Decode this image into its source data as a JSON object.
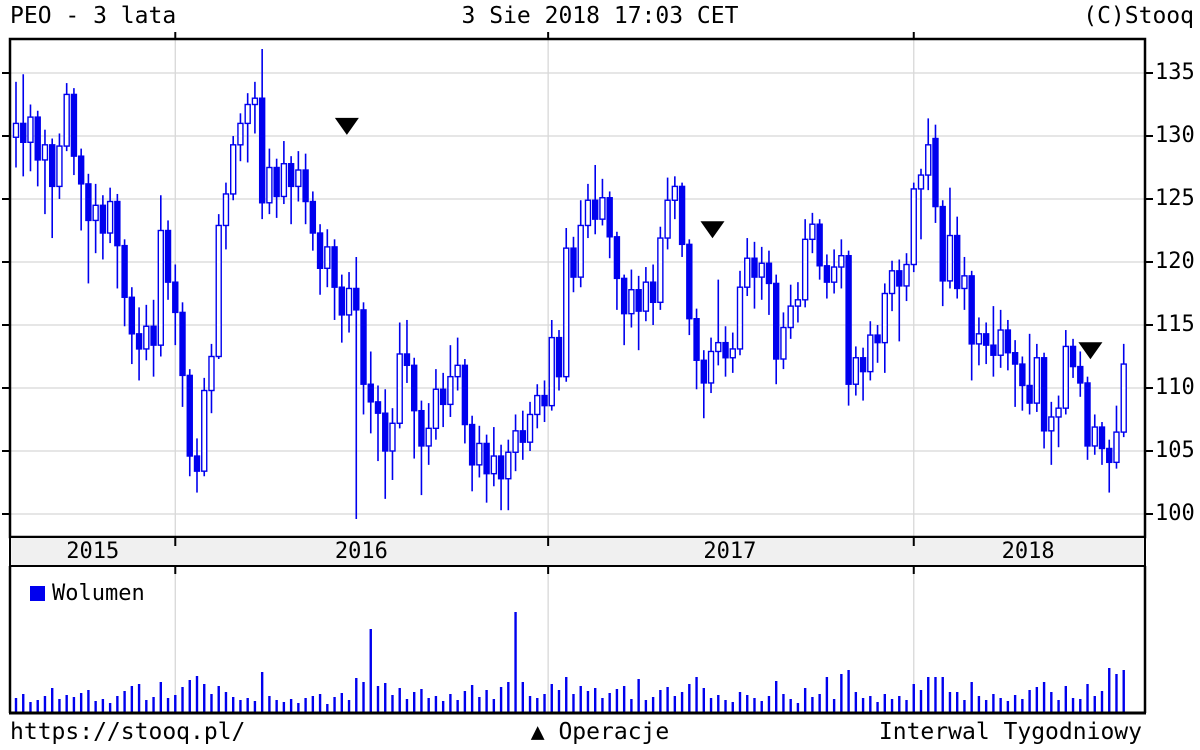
{
  "header": {
    "title": "PEO - 3 lata",
    "datetime": "3 Sie 2018 17:03 CET",
    "copyright": "(C)Stooq"
  },
  "footer": {
    "url": "https://stooq.pl/",
    "operations_glyph": "▲",
    "operations_label": " Operacje",
    "interval_label": "Interwal Tygodniowy"
  },
  "volume_legend": "Wolumen",
  "colors": {
    "candle": "#0000ee",
    "candle_fill_up": "#ffffff",
    "grid": "#d8d8d8",
    "band_fill": "#f0f0f0",
    "border": "#000000",
    "marker": "#000000"
  },
  "chart_data": {
    "type": "candlestick+volume",
    "title": "PEO - 3 lata",
    "interval": "weekly",
    "ticker": "PEO",
    "legend_volume": "Wolumen",
    "y_axis": {
      "ticks": [
        135,
        130,
        125,
        120,
        115,
        110,
        105,
        100
      ],
      "min": 98.5,
      "max": 137.7
    },
    "x_axis": {
      "year_labels": [
        "2015",
        "2016",
        "2017",
        "2018"
      ],
      "year_label_week_centers": [
        10.6,
        47.7,
        98.6,
        139.8
      ],
      "year_boundary_week_index": [
        22,
        73.5,
        124
      ]
    },
    "markers": {
      "glyph": "▼",
      "label": "Operacje",
      "week_price": [
        [
          45.7,
          130.8
        ],
        [
          96.2,
          122.6
        ],
        [
          148.4,
          113.0
        ]
      ]
    },
    "weeks_ohlcv": [
      [
        129.9,
        134.3,
        127.5,
        131.0,
        14
      ],
      [
        131.0,
        134.9,
        126.8,
        129.5,
        18
      ],
      [
        129.5,
        132.5,
        127.2,
        131.5,
        10
      ],
      [
        131.5,
        132.0,
        126.0,
        128.1,
        12
      ],
      [
        128.1,
        130.5,
        123.8,
        129.3,
        16
      ],
      [
        129.3,
        129.8,
        121.9,
        126.0,
        24
      ],
      [
        126.0,
        130.2,
        125.0,
        129.2,
        13
      ],
      [
        129.2,
        134.2,
        128.8,
        133.3,
        17
      ],
      [
        133.3,
        133.8,
        126.9,
        128.4,
        15
      ],
      [
        128.4,
        129.0,
        122.5,
        126.2,
        19
      ],
      [
        126.2,
        127.0,
        118.3,
        123.3,
        22
      ],
      [
        123.3,
        126.2,
        120.7,
        124.5,
        11
      ],
      [
        124.5,
        125.3,
        120.2,
        122.3,
        13
      ],
      [
        122.3,
        125.9,
        121.5,
        124.8,
        9
      ],
      [
        124.8,
        125.4,
        117.9,
        121.3,
        16
      ],
      [
        121.3,
        121.8,
        114.9,
        117.2,
        21
      ],
      [
        117.2,
        118.0,
        111.9,
        114.3,
        26
      ],
      [
        114.3,
        116.4,
        110.6,
        113.1,
        28
      ],
      [
        113.1,
        116.6,
        112.2,
        114.9,
        12
      ],
      [
        114.9,
        117.0,
        110.9,
        113.4,
        15
      ],
      [
        113.4,
        125.3,
        112.5,
        122.5,
        30
      ],
      [
        122.5,
        123.3,
        117.0,
        118.4,
        14
      ],
      [
        118.4,
        119.8,
        113.4,
        116.0,
        17
      ],
      [
        116.0,
        116.8,
        108.5,
        111.0,
        25
      ],
      [
        111.0,
        111.5,
        103.0,
        104.6,
        32
      ],
      [
        104.6,
        106.0,
        101.7,
        103.4,
        36
      ],
      [
        103.4,
        110.8,
        103.0,
        109.8,
        28
      ],
      [
        109.8,
        113.5,
        108.0,
        112.5,
        18
      ],
      [
        112.5,
        123.8,
        112.3,
        122.9,
        26
      ],
      [
        122.9,
        126.3,
        121.0,
        125.4,
        20
      ],
      [
        125.4,
        130.0,
        124.9,
        129.3,
        15
      ],
      [
        129.3,
        131.8,
        128.0,
        131.0,
        12
      ],
      [
        131.0,
        133.4,
        127.9,
        132.5,
        14
      ],
      [
        132.5,
        134.3,
        130.2,
        133.0,
        11
      ],
      [
        133.0,
        136.9,
        123.4,
        124.7,
        40
      ],
      [
        124.7,
        129.0,
        123.8,
        127.5,
        16
      ],
      [
        127.5,
        128.2,
        123.5,
        125.2,
        12
      ],
      [
        125.2,
        129.6,
        124.6,
        127.8,
        10
      ],
      [
        127.8,
        128.4,
        123.0,
        126.0,
        13
      ],
      [
        126.0,
        128.8,
        124.8,
        127.3,
        9
      ],
      [
        127.3,
        128.6,
        123.0,
        124.8,
        14
      ],
      [
        124.8,
        125.6,
        120.9,
        122.3,
        16
      ],
      [
        122.3,
        123.0,
        117.4,
        119.5,
        18
      ],
      [
        119.5,
        122.6,
        118.0,
        121.2,
        8
      ],
      [
        121.2,
        121.8,
        115.4,
        118.0,
        15
      ],
      [
        118.0,
        119.0,
        113.6,
        115.8,
        19
      ],
      [
        115.8,
        119.2,
        114.4,
        117.9,
        12
      ],
      [
        117.9,
        120.4,
        99.6,
        116.2,
        34
      ],
      [
        116.2,
        116.8,
        107.9,
        110.3,
        30
      ],
      [
        110.3,
        112.9,
        106.4,
        108.9,
        83
      ],
      [
        108.9,
        110.2,
        104.2,
        108.0,
        26
      ],
      [
        108.0,
        109.9,
        101.2,
        105.0,
        29
      ],
      [
        105.0,
        108.4,
        102.7,
        107.2,
        17
      ],
      [
        107.2,
        115.2,
        106.8,
        112.7,
        24
      ],
      [
        112.7,
        115.4,
        110.4,
        111.8,
        13
      ],
      [
        111.8,
        112.4,
        104.4,
        108.2,
        20
      ],
      [
        108.2,
        109.0,
        101.5,
        105.4,
        23
      ],
      [
        105.4,
        108.8,
        103.9,
        106.8,
        14
      ],
      [
        106.8,
        111.5,
        105.9,
        109.9,
        16
      ],
      [
        109.9,
        111.2,
        106.9,
        108.7,
        11
      ],
      [
        108.7,
        113.4,
        107.7,
        110.9,
        18
      ],
      [
        110.9,
        114.0,
        109.8,
        111.8,
        12
      ],
      [
        111.8,
        112.3,
        105.6,
        107.1,
        21
      ],
      [
        107.1,
        107.8,
        101.8,
        103.9,
        27
      ],
      [
        103.9,
        107.0,
        102.9,
        105.6,
        15
      ],
      [
        105.6,
        106.3,
        100.9,
        103.2,
        22
      ],
      [
        103.2,
        106.9,
        102.2,
        104.6,
        13
      ],
      [
        104.6,
        105.5,
        100.3,
        102.8,
        25
      ],
      [
        102.8,
        105.9,
        100.3,
        104.9,
        30
      ],
      [
        104.9,
        107.9,
        103.4,
        106.6,
        100
      ],
      [
        106.6,
        108.2,
        104.3,
        105.7,
        30
      ],
      [
        105.7,
        108.9,
        105.0,
        107.9,
        16
      ],
      [
        107.9,
        110.3,
        106.8,
        109.4,
        14
      ],
      [
        109.4,
        110.6,
        107.3,
        108.6,
        18
      ],
      [
        108.6,
        115.4,
        108.2,
        114.0,
        28
      ],
      [
        114.0,
        114.6,
        109.8,
        110.9,
        22
      ],
      [
        110.9,
        122.7,
        110.5,
        121.1,
        35
      ],
      [
        121.1,
        122.0,
        117.6,
        118.8,
        18
      ],
      [
        118.8,
        124.9,
        118.0,
        122.9,
        26
      ],
      [
        122.9,
        126.2,
        121.9,
        124.9,
        21
      ],
      [
        124.9,
        127.7,
        122.2,
        123.4,
        24
      ],
      [
        123.4,
        126.6,
        122.9,
        125.1,
        14
      ],
      [
        125.1,
        125.6,
        120.3,
        122.0,
        19
      ],
      [
        122.0,
        122.4,
        116.2,
        118.7,
        23
      ],
      [
        118.7,
        119.0,
        113.4,
        115.9,
        26
      ],
      [
        115.9,
        119.4,
        114.8,
        117.8,
        13
      ],
      [
        117.8,
        118.9,
        113.0,
        116.1,
        33
      ],
      [
        116.1,
        119.6,
        115.3,
        118.4,
        12
      ],
      [
        118.4,
        119.8,
        115.0,
        116.8,
        15
      ],
      [
        116.8,
        122.8,
        116.2,
        121.9,
        22
      ],
      [
        121.9,
        126.7,
        121.0,
        124.9,
        25
      ],
      [
        124.9,
        126.8,
        123.4,
        126.0,
        16
      ],
      [
        126.0,
        126.3,
        120.4,
        121.4,
        20
      ],
      [
        121.4,
        121.8,
        114.2,
        115.5,
        28
      ],
      [
        115.5,
        116.3,
        109.9,
        112.2,
        35
      ],
      [
        112.2,
        113.0,
        107.6,
        110.4,
        24
      ],
      [
        110.4,
        114.0,
        109.6,
        112.9,
        14
      ],
      [
        112.9,
        118.6,
        111.8,
        113.6,
        17
      ],
      [
        113.6,
        114.9,
        110.9,
        112.4,
        12
      ],
      [
        112.4,
        114.4,
        111.2,
        113.1,
        10
      ],
      [
        113.1,
        119.3,
        112.6,
        118.0,
        20
      ],
      [
        118.0,
        121.9,
        117.3,
        120.3,
        17
      ],
      [
        120.3,
        121.6,
        116.3,
        118.8,
        14
      ],
      [
        118.8,
        121.2,
        117.0,
        119.9,
        11
      ],
      [
        119.9,
        120.9,
        115.8,
        118.3,
        16
      ],
      [
        118.3,
        119.0,
        110.3,
        112.3,
        31
      ],
      [
        112.3,
        116.0,
        111.5,
        114.8,
        18
      ],
      [
        114.8,
        118.2,
        113.9,
        116.5,
        13
      ],
      [
        116.5,
        118.4,
        115.2,
        117.0,
        9
      ],
      [
        117.0,
        123.4,
        116.4,
        121.8,
        24
      ],
      [
        121.8,
        123.9,
        120.7,
        123.0,
        15
      ],
      [
        123.0,
        123.4,
        118.6,
        119.7,
        18
      ],
      [
        119.7,
        120.6,
        117.1,
        118.4,
        35
      ],
      [
        118.4,
        121.0,
        117.5,
        119.6,
        13
      ],
      [
        119.6,
        121.8,
        117.9,
        120.5,
        38
      ],
      [
        120.5,
        120.9,
        108.6,
        110.3,
        42
      ],
      [
        110.3,
        113.3,
        109.4,
        112.4,
        20
      ],
      [
        112.4,
        113.2,
        109.0,
        111.3,
        14
      ],
      [
        111.3,
        115.3,
        110.6,
        114.2,
        16
      ],
      [
        114.2,
        115.0,
        112.0,
        113.6,
        10
      ],
      [
        113.6,
        118.3,
        111.2,
        117.5,
        18
      ],
      [
        117.5,
        120.1,
        116.1,
        119.3,
        13
      ],
      [
        119.3,
        120.2,
        113.7,
        118.1,
        16
      ],
      [
        118.1,
        120.7,
        116.9,
        119.8,
        12
      ],
      [
        119.8,
        126.3,
        119.2,
        125.8,
        28
      ],
      [
        125.8,
        127.4,
        121.8,
        126.9,
        22
      ],
      [
        126.9,
        131.4,
        125.7,
        129.3,
        35
      ],
      [
        129.8,
        130.9,
        123.1,
        124.4,
        35
      ],
      [
        124.4,
        124.9,
        116.5,
        118.5,
        35
      ],
      [
        118.5,
        125.9,
        117.9,
        122.1,
        20
      ],
      [
        122.1,
        123.6,
        117.1,
        117.9,
        20
      ],
      [
        117.9,
        120.4,
        116.2,
        118.9,
        12
      ],
      [
        118.9,
        119.3,
        110.6,
        113.5,
        30
      ],
      [
        113.5,
        115.6,
        111.8,
        114.3,
        16
      ],
      [
        114.3,
        115.2,
        111.9,
        113.4,
        12
      ],
      [
        113.4,
        116.5,
        110.9,
        112.6,
        18
      ],
      [
        112.6,
        116.2,
        111.6,
        114.6,
        14
      ],
      [
        114.6,
        115.4,
        111.4,
        112.8,
        11
      ],
      [
        112.8,
        113.8,
        108.5,
        111.9,
        17
      ],
      [
        111.9,
        112.5,
        108.2,
        110.2,
        13
      ],
      [
        110.2,
        114.3,
        107.9,
        108.8,
        22
      ],
      [
        108.8,
        113.5,
        108.1,
        112.4,
        25
      ],
      [
        112.4,
        112.8,
        105.2,
        106.6,
        30
      ],
      [
        106.6,
        108.9,
        103.9,
        107.7,
        20
      ],
      [
        107.7,
        109.4,
        105.3,
        108.4,
        12
      ],
      [
        108.4,
        114.6,
        107.9,
        113.3,
        26
      ],
      [
        113.3,
        113.9,
        110.8,
        111.7,
        14
      ],
      [
        111.7,
        112.9,
        109.3,
        110.4,
        13
      ],
      [
        110.4,
        110.9,
        104.3,
        105.4,
        28
      ],
      [
        105.4,
        107.9,
        104.7,
        106.9,
        16
      ],
      [
        106.9,
        107.3,
        103.9,
        105.2,
        21
      ],
      [
        105.2,
        105.9,
        101.7,
        104.1,
        44
      ],
      [
        104.1,
        108.6,
        103.6,
        106.5,
        38
      ],
      [
        106.5,
        113.5,
        106.1,
        111.9,
        42
      ]
    ]
  }
}
